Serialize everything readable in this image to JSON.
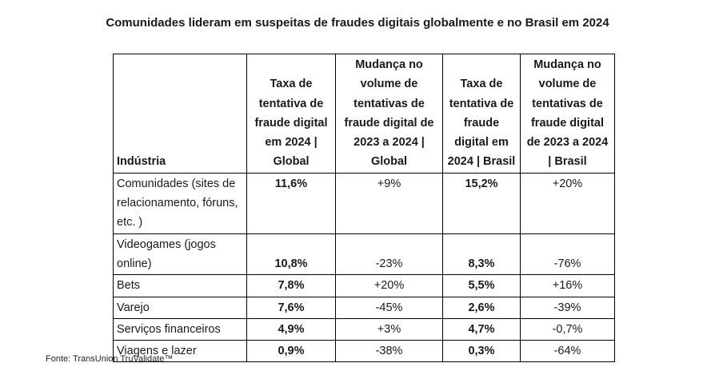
{
  "title": "Comunidades lideram em suspeitas de fraudes digitais globalmente e no Brasil em 2024",
  "table": {
    "headers": [
      "Indústria",
      "Taxa de tentativa de fraude digital em 2024 | Global",
      "Mudança no volume de tentativas de fraude digital de 2023 a 2024 | Global",
      "Taxa de tentativa de fraude digital em 2024 | Brasil",
      "Mudança no volume de tentativas de fraude digital de 2023 a 2024 | Brasil"
    ],
    "rows": [
      [
        "Comunidades (sites de relacionamento, fóruns, etc. )",
        "11,6%",
        "+9%",
        "15,2%",
        "+20%"
      ],
      [
        "Videogames (jogos online)",
        "10,8%",
        "-23%",
        "8,3%",
        "-76%"
      ],
      [
        "Bets",
        "7,8%",
        "+20%",
        "5,5%",
        "+16%"
      ],
      [
        "Varejo",
        "7,6%",
        "-45%",
        "2,6%",
        "-39%"
      ],
      [
        "Serviços financeiros",
        "4,9%",
        "+3%",
        "4,7%",
        "-0,7%"
      ],
      [
        "Viagens e lazer",
        "0,9%",
        "-38%",
        "0,3%",
        "-64%"
      ]
    ]
  },
  "source": "Fonte: TransUnion TruValidate™"
}
